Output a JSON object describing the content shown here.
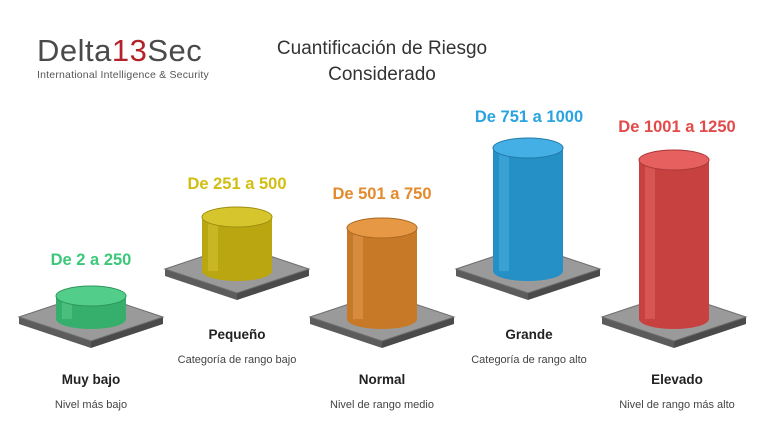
{
  "logo": {
    "name_part1": "Delta",
    "name_part2": "13",
    "name_part3": "Sec",
    "tagline": "International Intelligence & Security",
    "accent_color": "#b3242a"
  },
  "title": {
    "line1": "Cuantificación de Riesgo",
    "line2": "Considerado"
  },
  "levels": [
    {
      "range": "De 2 a 250",
      "name": "Muy bajo",
      "description": "Nivel más bajo",
      "color": "#3cc77a"
    },
    {
      "range": "De 251 a 500",
      "name": "Pequeño",
      "description": "Categoría de rango bajo",
      "color": "#d2bd12"
    },
    {
      "range": "De 501 a 750",
      "name": "Normal",
      "description": "Nivel de rango medio",
      "color": "#e38a2c"
    },
    {
      "range": "De 751 a 1000",
      "name": "Grande",
      "description": "Categoría de rango alto",
      "color": "#2aa4e0"
    },
    {
      "range": "De 1001 a 1250",
      "name": "Elevado",
      "description": "Nivel de rango más alto",
      "color": "#e34a4a"
    }
  ]
}
